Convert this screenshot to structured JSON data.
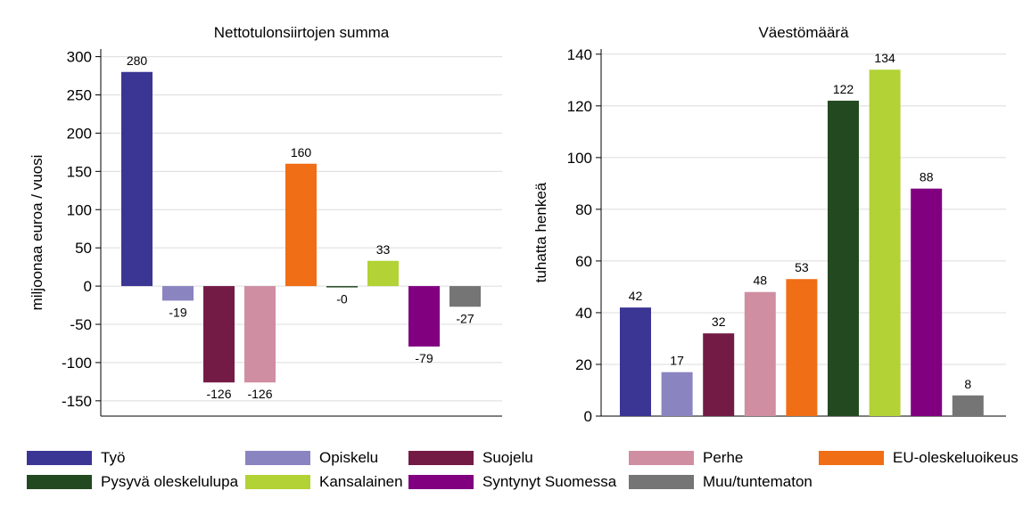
{
  "chart_data": [
    {
      "type": "bar",
      "title": "Nettotulonsiirtojen summa",
      "xlabel": "",
      "ylabel": "miljoonaa euroa / vuosi",
      "ylim": [
        -170,
        310
      ],
      "yticks": [
        300,
        250,
        200,
        150,
        100,
        50,
        0,
        -50,
        -100,
        -150
      ],
      "grid": true,
      "categories": [
        "Työ",
        "Opiskelu",
        "Suojelu",
        "Perhe",
        "EU-oleskeluoikeus",
        "Pysyvä oleskelulupa",
        "Kansalainen",
        "Syntynyt Suomessa",
        "Muu/tuntematon"
      ],
      "values": [
        280,
        -19,
        -126,
        -126,
        160,
        -0.5,
        33,
        -79,
        -27
      ],
      "data_labels": [
        "280",
        "-19",
        "-126",
        "-126",
        "160",
        "-0",
        "33",
        "-79",
        "-27"
      ]
    },
    {
      "type": "bar",
      "title": "Väestömäärä",
      "xlabel": "",
      "ylabel": "tuhatta henkeä",
      "ylim": [
        0,
        142
      ],
      "yticks": [
        140,
        120,
        100,
        80,
        60,
        40,
        20,
        0
      ],
      "grid": true,
      "categories": [
        "Työ",
        "Opiskelu",
        "Suojelu",
        "Perhe",
        "EU-oleskeluoikeus",
        "Pysyvä oleskelulupa",
        "Kansalainen",
        "Syntynyt Suomessa",
        "Muu/tuntematon"
      ],
      "values": [
        42,
        17,
        32,
        48,
        53,
        122,
        134,
        88,
        8
      ],
      "data_labels": [
        "42",
        "17",
        "32",
        "48",
        "53",
        "122",
        "134",
        "88",
        "8"
      ]
    }
  ],
  "colors": [
    "#3b3594",
    "#8a84c0",
    "#741b45",
    "#d08ea2",
    "#f06e16",
    "#234921",
    "#b2d235",
    "#800080",
    "#757575"
  ],
  "legend": {
    "position": "bottom",
    "items": [
      {
        "label": "Työ",
        "color": "#3b3594"
      },
      {
        "label": "Opiskelu",
        "color": "#8a84c0"
      },
      {
        "label": "Suojelu",
        "color": "#741b45"
      },
      {
        "label": "Perhe",
        "color": "#d08ea2"
      },
      {
        "label": "EU-oleskeluoikeus",
        "color": "#f06e16"
      },
      {
        "label": "Pysyvä oleskelulupa",
        "color": "#234921"
      },
      {
        "label": "Kansalainen",
        "color": "#b2d235"
      },
      {
        "label": "Syntynyt Suomessa",
        "color": "#800080"
      },
      {
        "label": "Muu/tuntematon",
        "color": "#757575"
      }
    ]
  }
}
